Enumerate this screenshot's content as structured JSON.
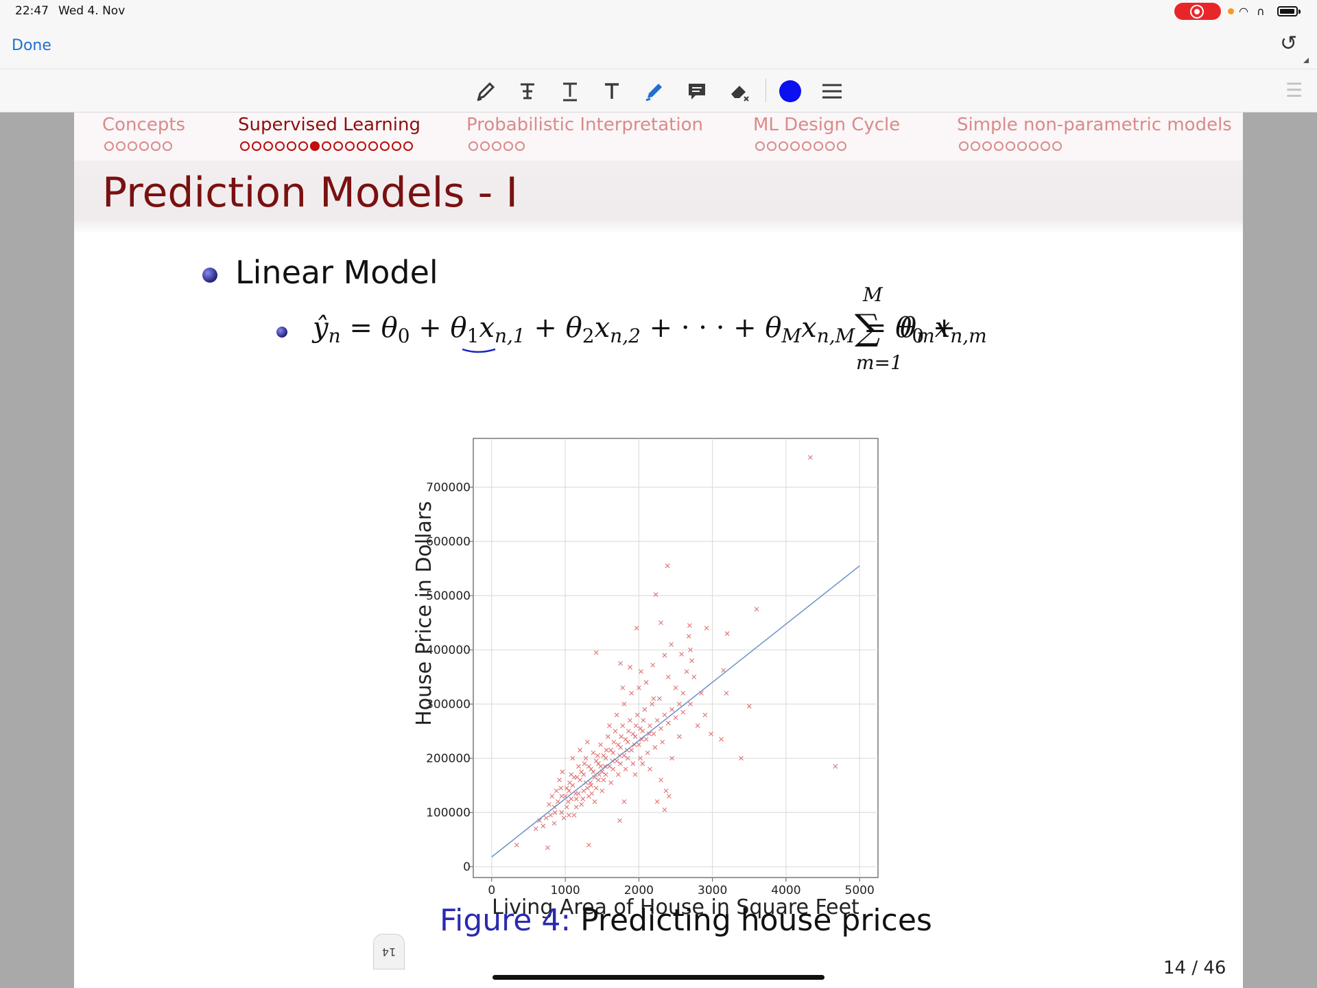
{
  "status_bar": {
    "time": "22:47",
    "date": "Wed 4. Nov"
  },
  "nav": {
    "done_label": "Done"
  },
  "toolbar": {
    "icons": [
      "pen-icon",
      "text-strike-icon",
      "text-underline-icon",
      "text-icon",
      "highlighter-icon",
      "comment-icon",
      "eraser-icon",
      "color-swatch",
      "menu-icon"
    ],
    "current_color": "#0a10f0"
  },
  "slide": {
    "sections": [
      {
        "label": "Concepts",
        "dots": 6,
        "filled": -1
      },
      {
        "label": "Supervised Learning",
        "dots": 15,
        "filled": 6
      },
      {
        "label": "Probabilistic Interpretation",
        "dots": 5,
        "filled": -1
      },
      {
        "label": "ML Design Cycle",
        "dots": 8,
        "filled": -1
      },
      {
        "label": "Simple non-parametric models",
        "dots": 9,
        "filled": -1
      }
    ],
    "title": "Prediction Models - I",
    "bullet": "Linear Model",
    "caption_label": "Figure 4:",
    "caption_text": "Predicting house prices",
    "page_indicator": "14 / 46",
    "thumb_label": "14"
  },
  "chart_data": {
    "type": "scatter",
    "xlabel": "Living Area of House in Square Feet",
    "ylabel": "House Price in Dollars",
    "xlim": [
      -250,
      5250
    ],
    "ylim": [
      -20000,
      790000
    ],
    "xticks": [
      0,
      1000,
      2000,
      3000,
      4000,
      5000
    ],
    "yticks": [
      0,
      100000,
      200000,
      300000,
      400000,
      500000,
      600000,
      700000
    ],
    "grid": true,
    "marker_color": "#e07070",
    "line_color": "#6b8fc7",
    "fit_line": {
      "x": [
        0,
        5000
      ],
      "y": [
        18000,
        555000
      ]
    },
    "points": [
      [
        4330,
        755000
      ],
      [
        2390,
        555000
      ],
      [
        2230,
        502000
      ],
      [
        3600,
        475000
      ],
      [
        2300,
        450000
      ],
      [
        1970,
        440000
      ],
      [
        2690,
        445000
      ],
      [
        2680,
        425000
      ],
      [
        2920,
        440000
      ],
      [
        3200,
        430000
      ],
      [
        2440,
        410000
      ],
      [
        1420,
        395000
      ],
      [
        1750,
        375000
      ],
      [
        1880,
        368000
      ],
      [
        2350,
        390000
      ],
      [
        2580,
        392000
      ],
      [
        2700,
        400000
      ],
      [
        1780,
        330000
      ],
      [
        2190,
        372000
      ],
      [
        2030,
        360000
      ],
      [
        2720,
        380000
      ],
      [
        2400,
        350000
      ],
      [
        3150,
        362000
      ],
      [
        2600,
        320000
      ],
      [
        3190,
        320000
      ],
      [
        3500,
        296000
      ],
      [
        2980,
        245000
      ],
      [
        3120,
        235000
      ],
      [
        4670,
        185000
      ],
      [
        3390,
        200000
      ],
      [
        2450,
        200000
      ],
      [
        2250,
        120000
      ],
      [
        2350,
        105000
      ],
      [
        2370,
        140000
      ],
      [
        2410,
        130000
      ],
      [
        2300,
        160000
      ],
      [
        1800,
        120000
      ],
      [
        1740,
        85000
      ],
      [
        1320,
        40000
      ],
      [
        760,
        35000
      ],
      [
        340,
        40000
      ],
      [
        600,
        70000
      ],
      [
        650,
        85000
      ],
      [
        800,
        95000
      ],
      [
        850,
        110000
      ],
      [
        900,
        120000
      ],
      [
        950,
        100000
      ],
      [
        1000,
        130000
      ],
      [
        1050,
        140000
      ],
      [
        1100,
        150000
      ],
      [
        1150,
        125000
      ],
      [
        1200,
        160000
      ],
      [
        1250,
        170000
      ],
      [
        1300,
        145000
      ],
      [
        1350,
        180000
      ],
      [
        1400,
        165000
      ],
      [
        1450,
        190000
      ],
      [
        1500,
        175000
      ],
      [
        1550,
        200000
      ],
      [
        1600,
        185000
      ],
      [
        1650,
        210000
      ],
      [
        1700,
        195000
      ],
      [
        1750,
        220000
      ],
      [
        1800,
        205000
      ],
      [
        1850,
        230000
      ],
      [
        1900,
        215000
      ],
      [
        1950,
        240000
      ],
      [
        2000,
        225000
      ],
      [
        2050,
        250000
      ],
      [
        2100,
        235000
      ],
      [
        2150,
        260000
      ],
      [
        2200,
        245000
      ],
      [
        2250,
        270000
      ],
      [
        2300,
        255000
      ],
      [
        2350,
        280000
      ],
      [
        2400,
        265000
      ],
      [
        2450,
        290000
      ],
      [
        2500,
        275000
      ],
      [
        2550,
        300000
      ],
      [
        2600,
        285000
      ],
      [
        880,
        140000
      ],
      [
        920,
        160000
      ],
      [
        980,
        90000
      ],
      [
        1020,
        110000
      ],
      [
        1080,
        170000
      ],
      [
        1120,
        95000
      ],
      [
        1180,
        185000
      ],
      [
        1220,
        115000
      ],
      [
        1280,
        200000
      ],
      [
        1320,
        130000
      ],
      [
        1380,
        210000
      ],
      [
        1420,
        145000
      ],
      [
        1480,
        225000
      ],
      [
        1520,
        160000
      ],
      [
        1580,
        240000
      ],
      [
        1620,
        155000
      ],
      [
        1680,
        250000
      ],
      [
        1720,
        170000
      ],
      [
        1780,
        260000
      ],
      [
        1820,
        180000
      ],
      [
        1880,
        270000
      ],
      [
        1920,
        190000
      ],
      [
        1980,
        280000
      ],
      [
        2020,
        200000
      ],
      [
        2080,
        290000
      ],
      [
        2120,
        210000
      ],
      [
        2180,
        300000
      ],
      [
        2220,
        220000
      ],
      [
        2280,
        310000
      ],
      [
        2320,
        230000
      ],
      [
        700,
        75000
      ],
      [
        740,
        90000
      ],
      [
        780,
        115000
      ],
      [
        820,
        130000
      ],
      [
        860,
        100000
      ],
      [
        940,
        145000
      ],
      [
        960,
        175000
      ],
      [
        1040,
        120000
      ],
      [
        1060,
        155000
      ],
      [
        1140,
        135000
      ],
      [
        1160,
        165000
      ],
      [
        1240,
        125000
      ],
      [
        1260,
        190000
      ],
      [
        1340,
        155000
      ],
      [
        1360,
        135000
      ],
      [
        1440,
        205000
      ],
      [
        1460,
        170000
      ],
      [
        1540,
        185000
      ],
      [
        1560,
        215000
      ],
      [
        1640,
        195000
      ],
      [
        1660,
        230000
      ],
      [
        1740,
        205000
      ],
      [
        1760,
        240000
      ],
      [
        1840,
        215000
      ],
      [
        1860,
        250000
      ],
      [
        1940,
        225000
      ],
      [
        1960,
        260000
      ],
      [
        2040,
        235000
      ],
      [
        2060,
        270000
      ],
      [
        2140,
        245000
      ],
      [
        1100,
        200000
      ],
      [
        1200,
        215000
      ],
      [
        1300,
        230000
      ],
      [
        1400,
        120000
      ],
      [
        1500,
        140000
      ],
      [
        1600,
        260000
      ],
      [
        1700,
        280000
      ],
      [
        1800,
        300000
      ],
      [
        1900,
        320000
      ],
      [
        2000,
        330000
      ],
      [
        2100,
        340000
      ],
      [
        2200,
        310000
      ],
      [
        2500,
        330000
      ],
      [
        2700,
        300000
      ],
      [
        2800,
        260000
      ],
      [
        2900,
        280000
      ],
      [
        2750,
        350000
      ],
      [
        2850,
        320000
      ],
      [
        2650,
        360000
      ],
      [
        2550,
        240000
      ],
      [
        1250,
        140000
      ],
      [
        1150,
        110000
      ],
      [
        1050,
        95000
      ],
      [
        950,
        130000
      ],
      [
        850,
        80000
      ],
      [
        1350,
        150000
      ],
      [
        1450,
        160000
      ],
      [
        1550,
        170000
      ],
      [
        1650,
        180000
      ],
      [
        1750,
        190000
      ],
      [
        1850,
        200000
      ],
      [
        1950,
        170000
      ],
      [
        2050,
        190000
      ],
      [
        2150,
        180000
      ],
      [
        1020,
        145000
      ],
      [
        1120,
        165000
      ],
      [
        1220,
        175000
      ],
      [
        1320,
        185000
      ],
      [
        1420,
        195000
      ],
      [
        1520,
        205000
      ],
      [
        1620,
        215000
      ],
      [
        1720,
        225000
      ],
      [
        1820,
        235000
      ],
      [
        1920,
        245000
      ],
      [
        2020,
        255000
      ],
      [
        1080,
        125000
      ],
      [
        1180,
        135000
      ],
      [
        1280,
        155000
      ],
      [
        1380,
        175000
      ],
      [
        1480,
        185000
      ]
    ]
  }
}
